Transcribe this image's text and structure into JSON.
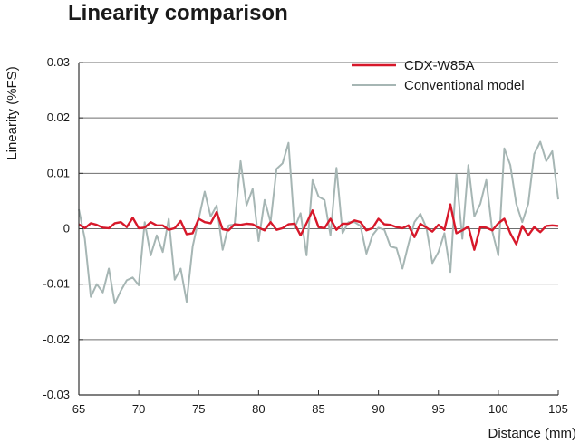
{
  "chart_data": {
    "type": "line",
    "title": "Linearity comparison",
    "xlabel": "Distance (mm)",
    "ylabel": "Linearity (%FS)",
    "xlim": [
      65,
      105
    ],
    "ylim": [
      -0.03,
      0.03
    ],
    "xticks": [
      65,
      70,
      75,
      80,
      85,
      90,
      95,
      100,
      105
    ],
    "xtick_labels": [
      "65",
      "70",
      "75",
      "80",
      "85",
      "90",
      "95",
      "100",
      "105"
    ],
    "yticks": [
      -0.03,
      -0.02,
      -0.01,
      0,
      0.01,
      0.02,
      0.03
    ],
    "ytick_labels": [
      "-0.03",
      "-0.02",
      "-0.01",
      "0",
      "0.01",
      "0.02",
      "0.03"
    ],
    "grid": "horizontal",
    "legend_position": "top-right",
    "series": [
      {
        "name": "CDX-W85A",
        "color": "#d7182a",
        "x": [
          65,
          65.5,
          66,
          66.5,
          67,
          67.5,
          68,
          68.5,
          69,
          69.5,
          70,
          70.5,
          71,
          71.5,
          72,
          72.5,
          73,
          73.5,
          74,
          74.5,
          75,
          75.5,
          76,
          76.5,
          77,
          77.5,
          78,
          78.5,
          79,
          79.5,
          80,
          80.5,
          81,
          81.5,
          82,
          82.5,
          83,
          83.5,
          84,
          84.5,
          85,
          85.5,
          86,
          86.5,
          87,
          87.5,
          88,
          88.5,
          89,
          89.5,
          90,
          90.5,
          91,
          91.5,
          92,
          92.5,
          93,
          93.5,
          94,
          94.5,
          95,
          95.5,
          96,
          96.5,
          97,
          97.5,
          98,
          98.5,
          99,
          99.5,
          100,
          100.5,
          101,
          101.5,
          102,
          102.5,
          103,
          103.5,
          104,
          104.5,
          105
        ],
        "values": [
          0.0008,
          0.0001,
          0.001,
          0.0007,
          0.0002,
          0.0001,
          0.001,
          0.0012,
          0.0003,
          0.002,
          0.0001,
          0.0002,
          0.0012,
          0.0006,
          0.0006,
          -0.0002,
          0.0001,
          0.0014,
          -0.001,
          -0.0008,
          0.0018,
          0.0012,
          0.001,
          0.003,
          -0.0001,
          -0.0003,
          0.0008,
          0.0007,
          0.0009,
          0.0008,
          0.0002,
          -0.0003,
          0.0012,
          -0.0002,
          0.0001,
          0.0008,
          0.0009,
          -0.0012,
          0.001,
          0.0033,
          0.0003,
          0.0001,
          0.0018,
          -0.0002,
          0.0009,
          0.0009,
          0.0015,
          0.0012,
          -0.0003,
          0.0001,
          0.0018,
          0.0008,
          0.0007,
          0.0003,
          0.0001,
          0.0006,
          -0.0015,
          0.0009,
          0.0002,
          -0.0005,
          0.0007,
          -0.0002,
          0.0044,
          -0.0008,
          -0.0003,
          0.0004,
          -0.0038,
          0.0003,
          0.0002,
          -0.0003,
          0.001,
          0.0018,
          -0.0008,
          -0.0028,
          0.0005,
          -0.0012,
          0.0003,
          -0.0006,
          0.0005,
          0.0006,
          0.0005
        ]
      },
      {
        "name": "Conventional model",
        "color": "#a6b6b4",
        "x": [
          65,
          65.5,
          66,
          66.5,
          67,
          67.5,
          68,
          68.5,
          69,
          69.5,
          70,
          70.5,
          71,
          71.5,
          72,
          72.5,
          73,
          73.5,
          74,
          74.5,
          75,
          75.5,
          76,
          76.5,
          77,
          77.5,
          78,
          78.5,
          79,
          79.5,
          80,
          80.5,
          81,
          81.5,
          82,
          82.5,
          83,
          83.5,
          84,
          84.5,
          85,
          85.5,
          86,
          86.5,
          87,
          87.5,
          88,
          88.5,
          89,
          89.5,
          90,
          90.5,
          91,
          91.5,
          92,
          92.5,
          93,
          93.5,
          94,
          94.5,
          95,
          95.5,
          96,
          96.5,
          97,
          97.5,
          98,
          98.5,
          99,
          99.5,
          100,
          100.5,
          101,
          101.5,
          102,
          102.5,
          103,
          103.5,
          104,
          104.5,
          105
        ],
        "values": [
          0.0035,
          -0.0018,
          -0.0123,
          -0.01,
          -0.0115,
          -0.0072,
          -0.0135,
          -0.0112,
          -0.0093,
          -0.0088,
          -0.0102,
          0.0012,
          -0.0048,
          -0.0012,
          -0.0042,
          0.0018,
          -0.0092,
          -0.0072,
          -0.0132,
          -0.0032,
          0.0018,
          0.0067,
          0.0022,
          0.0042,
          -0.0038,
          0.0006,
          0.0008,
          0.0122,
          0.0042,
          0.0072,
          -0.0022,
          0.0052,
          0.0012,
          0.0108,
          0.0118,
          0.0155,
          0.0001,
          0.0028,
          -0.0048,
          0.0088,
          0.0058,
          0.0052,
          -0.0012,
          0.011,
          -0.0008,
          0.0012,
          0.0012,
          0.0005,
          -0.0045,
          -0.0012,
          0.0002,
          -0.0002,
          -0.0032,
          -0.0035,
          -0.0072,
          -0.0028,
          0.0012,
          0.0027,
          0.0002,
          -0.0062,
          -0.0042,
          -0.0008,
          -0.0078,
          0.0098,
          -0.0018,
          0.0115,
          0.0022,
          0.0045,
          0.0088,
          -0.0005,
          -0.0048,
          0.0145,
          0.0115,
          0.0045,
          0.0012,
          0.0045,
          0.0135,
          0.0157,
          0.0122,
          0.014,
          0.0053
        ]
      }
    ]
  }
}
